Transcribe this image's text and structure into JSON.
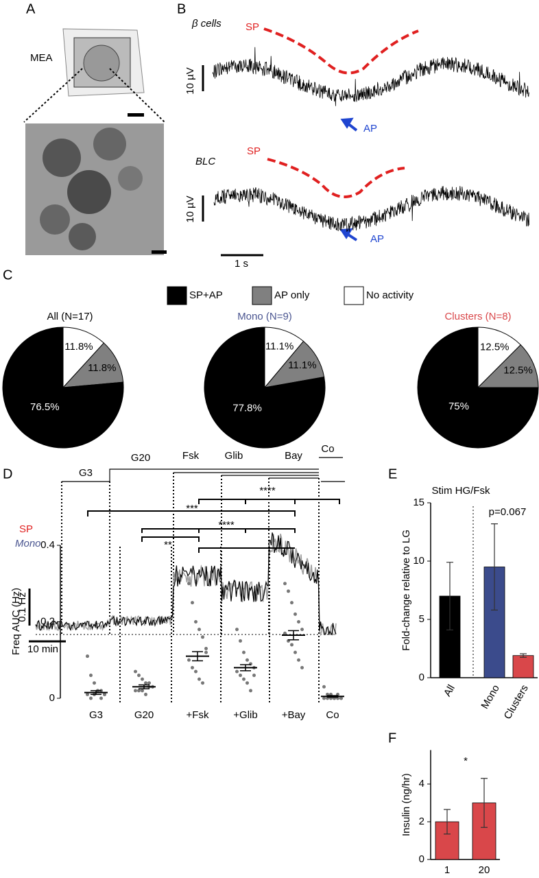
{
  "figure": {
    "panel_labels": [
      "A",
      "B",
      "C",
      "D",
      "E",
      "F"
    ],
    "mea": "MEA",
    "b_traces": [
      {
        "label": "β cells",
        "sp": "SP",
        "ap": "AP",
        "scale": "10 µV"
      },
      {
        "label": "BLC",
        "sp": "SP",
        "ap": "AP",
        "scale": "10 µV"
      }
    ],
    "time_scale": "1 s",
    "d_trace": {
      "conditions": [
        "G3",
        "G20",
        "Fsk",
        "Glib",
        "Bay",
        "Co"
      ],
      "sp": "SP",
      "mono": "Mono",
      "y_scale": "0.1 Hz",
      "x_scale": "10 min"
    },
    "significance": [
      "**",
      "***",
      "****",
      "****"
    ]
  },
  "legend": {
    "labels": [
      "SP+AP",
      "AP only",
      "No activity"
    ],
    "colors": [
      "#000000",
      "#808080",
      "#ffffff"
    ]
  },
  "chart_data": [
    {
      "type": "pie",
      "title": "All (N=17)",
      "title_color": "#000000",
      "values": [
        76.5,
        11.8,
        11.8
      ],
      "value_labels": [
        "76.5%",
        "11.8%",
        "11.8%"
      ]
    },
    {
      "type": "pie",
      "title": "Mono (N=9)",
      "title_color": "#4a5590",
      "values": [
        77.8,
        11.1,
        11.1
      ],
      "value_labels": [
        "77.8%",
        "11.1%",
        "11.1%"
      ]
    },
    {
      "type": "pie",
      "title": "Clusters (N=8)",
      "title_color": "#d9474a",
      "values": [
        75,
        12.5,
        12.5
      ],
      "value_labels": [
        "75%",
        "12.5%",
        "12.5%"
      ]
    },
    {
      "type": "strip",
      "y_label": "Freq AUC (Hz)",
      "categories": [
        "G3",
        "G20",
        "+Fsk",
        "+Glib",
        "+Bay",
        "Co"
      ],
      "values": [
        0.015,
        0.03,
        0.11,
        0.08,
        0.165,
        0.005
      ],
      "errors": [
        0.005,
        0.005,
        0.012,
        0.008,
        0.012,
        0.002
      ],
      "points": [
        [
          0.11,
          0.06,
          0.04,
          0.02,
          0.02,
          0.01,
          0.01,
          0.0,
          0.01,
          0.02,
          0.0,
          0.01
        ],
        [
          0.07,
          0.06,
          0.05,
          0.04,
          0.03,
          0.03,
          0.02,
          0.02,
          0.02,
          0.01,
          0.04,
          0.03
        ],
        [
          0.3,
          0.25,
          0.2,
          0.18,
          0.16,
          0.12,
          0.1,
          0.08,
          0.07,
          0.05,
          0.04,
          0.13
        ],
        [
          0.18,
          0.15,
          0.12,
          0.1,
          0.09,
          0.08,
          0.07,
          0.06,
          0.05,
          0.04,
          0.02,
          0.06
        ],
        [
          0.3,
          0.28,
          0.25,
          0.22,
          0.2,
          0.18,
          0.17,
          0.15,
          0.14,
          0.12,
          0.1,
          0.08
        ],
        [
          0.03,
          0.01,
          0.0,
          0.0,
          0.01,
          0.0,
          0.0,
          0.0,
          0.01,
          0.0,
          0.0,
          0.0
        ]
      ],
      "ylim": [
        0,
        0.4
      ],
      "yticks": [
        0,
        0.2,
        0.4
      ],
      "color": "#777777"
    },
    {
      "type": "bar",
      "title": "Stim HG/Fsk",
      "y_label": "Fold-change relative to LG",
      "annotation": "p=0.067",
      "categories": [
        "All",
        "Mono",
        "Clusters"
      ],
      "values": [
        7.0,
        9.5,
        1.9
      ],
      "errors": [
        2.9,
        3.7,
        0.15
      ],
      "colors": [
        "#000000",
        "#3b4b8c",
        "#d9474a"
      ],
      "ylim": [
        0,
        15
      ],
      "yticks": [
        0,
        5,
        10,
        15
      ]
    },
    {
      "type": "bar",
      "y_label": "Insulin (ng/hr)",
      "annotation": "*",
      "categories": [
        "1",
        "20"
      ],
      "values": [
        2.0,
        3.0
      ],
      "errors": [
        0.65,
        1.3
      ],
      "colors": [
        "#d9474a",
        "#d9474a"
      ],
      "ylim": [
        0,
        5.8
      ],
      "yticks": [
        0,
        2,
        4
      ]
    }
  ]
}
